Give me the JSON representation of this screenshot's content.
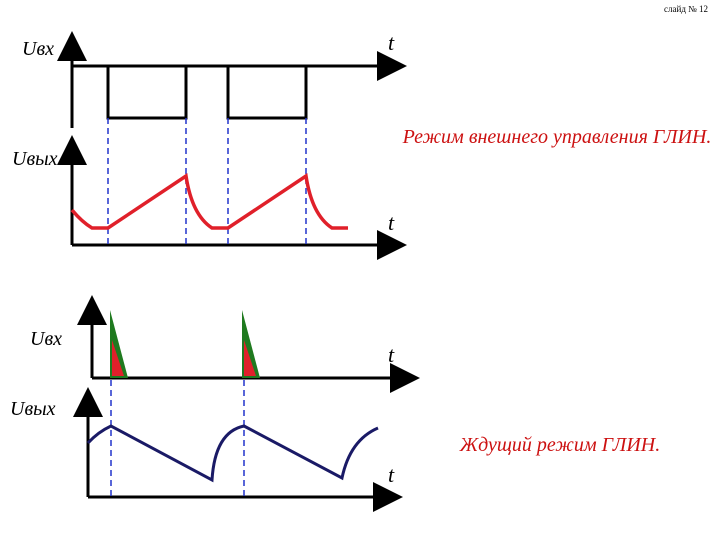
{
  "slide_number": "слайд № 12",
  "labels": {
    "uin_1": "Uвх",
    "uout_1": "Uвых",
    "uin_2": "Uвх",
    "uout_2": "Uвых",
    "t_1": "t",
    "t_2": "t",
    "t_3": "t",
    "t_4": "t"
  },
  "captions": {
    "external": "Режим внешнего управления ГЛИН.",
    "standby": "Ждущий режим ГЛИН."
  },
  "colors": {
    "axis": "#000000",
    "pulse": "#000000",
    "red_wave": "#e0202a",
    "navy_wave": "#1a1a66",
    "dashed": "#2233cc",
    "green_pulse": "#1f7a1f",
    "red_fill": "#e0202a"
  }
}
